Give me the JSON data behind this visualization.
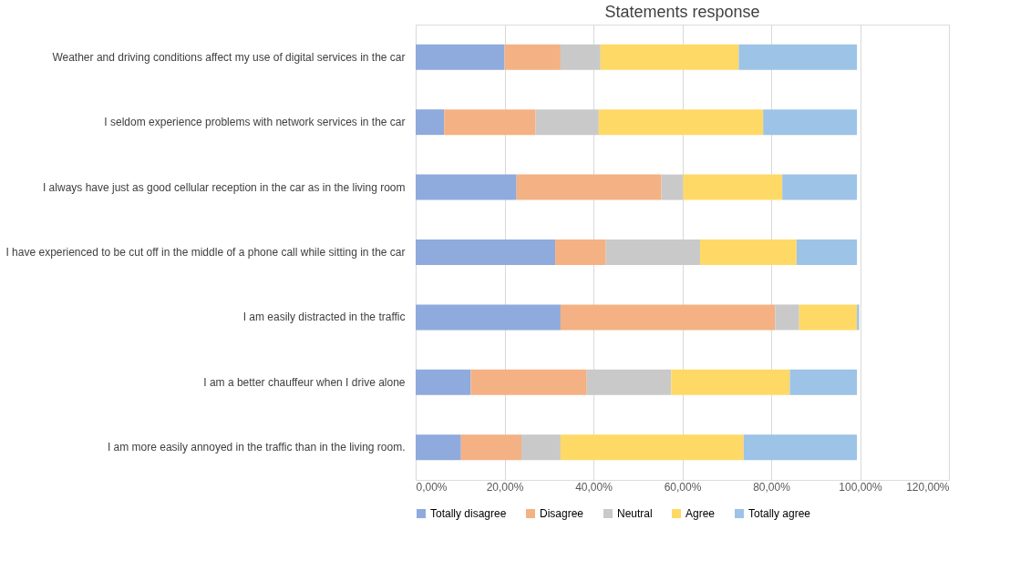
{
  "chart_data": {
    "type": "bar",
    "orientation": "horizontal",
    "stacked": true,
    "title": "Statements response",
    "categories": [
      "Weather and driving conditions affect my use of digital services in the car",
      "I seldom experience problems with network services in the car",
      "I always have just as good cellular reception in the car as in the living room",
      "I have experienced to be cut off in the middle of a phone call while sitting in the car",
      "I am easily distracted in the traffic",
      "I am a better chauffeur when I drive alone",
      "I am more easily annoyed in the traffic than in the living room."
    ],
    "series": [
      {
        "name": "Totally disagree",
        "color": "#8faadc",
        "values": [
          20.0,
          6.4,
          22.7,
          31.4,
          32.6,
          12.4,
          10.2
        ]
      },
      {
        "name": "Disagree",
        "color": "#f4b183",
        "values": [
          12.6,
          20.6,
          32.6,
          11.4,
          48.3,
          26.1,
          13.6
        ]
      },
      {
        "name": "Neutral",
        "color": "#c9c9c9",
        "values": [
          9.0,
          14.2,
          4.9,
          21.2,
          5.4,
          19.0,
          8.8
        ]
      },
      {
        "name": "Agree",
        "color": "#ffd966",
        "values": [
          31.1,
          37.0,
          22.3,
          21.7,
          13.0,
          26.7,
          41.2
        ]
      },
      {
        "name": "Totally agree",
        "color": "#9dc3e6",
        "values": [
          26.6,
          21.1,
          16.8,
          13.6,
          0.5,
          15.1,
          25.5
        ]
      }
    ],
    "xlim": [
      0,
      120
    ],
    "xticks": [
      {
        "value": 0,
        "label": "0,00%"
      },
      {
        "value": 20,
        "label": "20,00%"
      },
      {
        "value": 40,
        "label": "40,00%"
      },
      {
        "value": 60,
        "label": "60,00%"
      },
      {
        "value": 80,
        "label": "80,00%"
      },
      {
        "value": 100,
        "label": "100,00%"
      },
      {
        "value": 120,
        "label": "120,00%"
      }
    ],
    "grid": "x",
    "legend": "bottom"
  }
}
